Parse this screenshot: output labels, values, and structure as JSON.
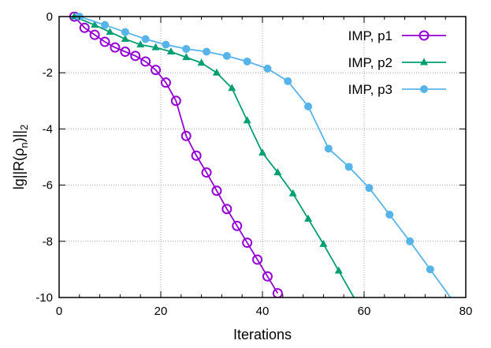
{
  "chart_data": {
    "type": "line",
    "title": "",
    "xlabel": "Iterations",
    "ylabel": {
      "main": "lg||R(",
      "rho": "ρ",
      "rho_sub": "n",
      "close": ")||",
      "sub": "2"
    },
    "xlim": [
      0,
      80
    ],
    "ylim": [
      -10,
      0
    ],
    "xticks": [
      0,
      20,
      40,
      60,
      80
    ],
    "yticks": [
      0,
      -2,
      -4,
      -6,
      -8,
      -10
    ],
    "grid": true,
    "legend_position": "top-right",
    "series": [
      {
        "name": "IMP, p1",
        "color": "#9400d3",
        "marker": "open-circle",
        "x": [
          3,
          5,
          7,
          9,
          11,
          13,
          15,
          17,
          19,
          21,
          23,
          25,
          27,
          29,
          31,
          33,
          35,
          37,
          39,
          41,
          43
        ],
        "y": [
          0,
          -0.4,
          -0.65,
          -0.9,
          -1.1,
          -1.25,
          -1.4,
          -1.6,
          -1.9,
          -2.35,
          -3.0,
          -4.25,
          -4.95,
          -5.55,
          -6.2,
          -6.85,
          -7.45,
          -8.05,
          -8.65,
          -9.25,
          -9.85
        ]
      },
      {
        "name": "IMP, p2",
        "color": "#009e73",
        "marker": "filled-triangle",
        "x": [
          3,
          7,
          10,
          13,
          16,
          19,
          22,
          25,
          28,
          31,
          34,
          37,
          40,
          43,
          46,
          49,
          52,
          55,
          58
        ],
        "y": [
          0,
          -0.3,
          -0.55,
          -0.8,
          -1.0,
          -1.1,
          -1.25,
          -1.45,
          -1.65,
          -2.0,
          -2.55,
          -3.7,
          -4.85,
          -5.55,
          -6.3,
          -7.2,
          -8.1,
          -9.05,
          -10.0
        ]
      },
      {
        "name": "IMP, p3",
        "color": "#56b4e9",
        "marker": "filled-circle",
        "x": [
          4,
          9,
          13,
          17,
          21,
          25,
          29,
          33,
          37,
          41,
          45,
          49,
          53,
          57,
          61,
          65,
          69,
          73,
          77
        ],
        "y": [
          0,
          -0.3,
          -0.55,
          -0.8,
          -1.0,
          -1.15,
          -1.25,
          -1.4,
          -1.6,
          -1.85,
          -2.3,
          -3.2,
          -4.7,
          -5.35,
          -6.1,
          -7.05,
          -8.0,
          -9.0,
          -10.0
        ]
      }
    ]
  }
}
